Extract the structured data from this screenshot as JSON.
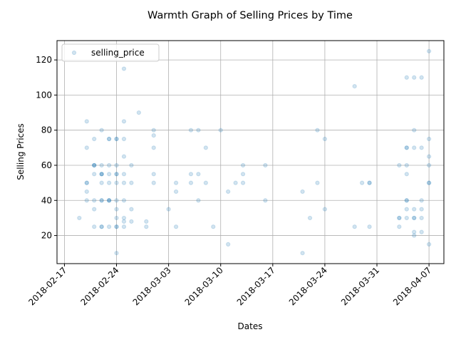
{
  "chart_data": {
    "type": "scatter",
    "title": "Warmth Graph of Selling Prices by Time",
    "xlabel": "Dates",
    "ylabel": "Selling Prices",
    "xlim": [
      "2018-02-16",
      "2018-04-09"
    ],
    "ylim": [
      4,
      131
    ],
    "xticks": [
      "2018-02-17",
      "2018-02-24",
      "2018-03-03",
      "2018-03-10",
      "2018-03-17",
      "2018-03-24",
      "2018-03-31",
      "2018-04-07"
    ],
    "yticks": [
      20,
      40,
      60,
      80,
      100,
      120
    ],
    "grid": true,
    "legend_position": "top-left",
    "series": [
      {
        "name": "selling_price",
        "color": "#1f77b4",
        "points": [
          [
            "2018-02-19",
            30
          ],
          [
            "2018-02-20",
            85
          ],
          [
            "2018-02-20",
            70
          ],
          [
            "2018-02-20",
            50
          ],
          [
            "2018-02-20",
            50
          ],
          [
            "2018-02-20",
            45
          ],
          [
            "2018-02-20",
            40
          ],
          [
            "2018-02-21",
            75
          ],
          [
            "2018-02-21",
            60
          ],
          [
            "2018-02-21",
            60
          ],
          [
            "2018-02-21",
            60
          ],
          [
            "2018-02-21",
            55
          ],
          [
            "2018-02-21",
            40
          ],
          [
            "2018-02-21",
            35
          ],
          [
            "2018-02-21",
            25
          ],
          [
            "2018-02-22",
            80
          ],
          [
            "2018-02-22",
            60
          ],
          [
            "2018-02-22",
            55
          ],
          [
            "2018-02-22",
            55
          ],
          [
            "2018-02-22",
            55
          ],
          [
            "2018-02-22",
            50
          ],
          [
            "2018-02-22",
            40
          ],
          [
            "2018-02-22",
            40
          ],
          [
            "2018-02-22",
            25
          ],
          [
            "2018-02-22",
            25
          ],
          [
            "2018-02-23",
            75
          ],
          [
            "2018-02-23",
            75
          ],
          [
            "2018-02-23",
            60
          ],
          [
            "2018-02-23",
            55
          ],
          [
            "2018-02-23",
            50
          ],
          [
            "2018-02-23",
            40
          ],
          [
            "2018-02-23",
            40
          ],
          [
            "2018-02-23",
            40
          ],
          [
            "2018-02-23",
            25
          ],
          [
            "2018-02-24",
            75
          ],
          [
            "2018-02-24",
            75
          ],
          [
            "2018-02-24",
            60
          ],
          [
            "2018-02-24",
            55
          ],
          [
            "2018-02-24",
            55
          ],
          [
            "2018-02-24",
            50
          ],
          [
            "2018-02-24",
            40
          ],
          [
            "2018-02-24",
            35
          ],
          [
            "2018-02-24",
            30
          ],
          [
            "2018-02-24",
            25
          ],
          [
            "2018-02-24",
            25
          ],
          [
            "2018-02-24",
            10
          ],
          [
            "2018-02-25",
            115
          ],
          [
            "2018-02-25",
            85
          ],
          [
            "2018-02-25",
            75
          ],
          [
            "2018-02-25",
            65
          ],
          [
            "2018-02-25",
            55
          ],
          [
            "2018-02-25",
            50
          ],
          [
            "2018-02-25",
            40
          ],
          [
            "2018-02-25",
            30
          ],
          [
            "2018-02-25",
            28
          ],
          [
            "2018-02-25",
            25
          ],
          [
            "2018-02-26",
            60
          ],
          [
            "2018-02-26",
            50
          ],
          [
            "2018-02-26",
            35
          ],
          [
            "2018-02-26",
            28
          ],
          [
            "2018-02-27",
            90
          ],
          [
            "2018-02-28",
            28
          ],
          [
            "2018-02-28",
            25
          ],
          [
            "2018-03-01",
            80
          ],
          [
            "2018-03-01",
            77
          ],
          [
            "2018-03-01",
            70
          ],
          [
            "2018-03-01",
            55
          ],
          [
            "2018-03-01",
            50
          ],
          [
            "2018-03-03",
            35
          ],
          [
            "2018-03-04",
            50
          ],
          [
            "2018-03-04",
            45
          ],
          [
            "2018-03-04",
            25
          ],
          [
            "2018-03-06",
            80
          ],
          [
            "2018-03-06",
            55
          ],
          [
            "2018-03-06",
            50
          ],
          [
            "2018-03-07",
            80
          ],
          [
            "2018-03-07",
            55
          ],
          [
            "2018-03-07",
            40
          ],
          [
            "2018-03-08",
            70
          ],
          [
            "2018-03-08",
            50
          ],
          [
            "2018-03-09",
            25
          ],
          [
            "2018-03-10",
            80
          ],
          [
            "2018-03-11",
            45
          ],
          [
            "2018-03-11",
            15
          ],
          [
            "2018-03-12",
            50
          ],
          [
            "2018-03-13",
            60
          ],
          [
            "2018-03-13",
            55
          ],
          [
            "2018-03-13",
            50
          ],
          [
            "2018-03-16",
            60
          ],
          [
            "2018-03-16",
            40
          ],
          [
            "2018-03-21",
            45
          ],
          [
            "2018-03-21",
            10
          ],
          [
            "2018-03-22",
            30
          ],
          [
            "2018-03-23",
            80
          ],
          [
            "2018-03-23",
            50
          ],
          [
            "2018-03-24",
            75
          ],
          [
            "2018-03-24",
            35
          ],
          [
            "2018-03-28",
            105
          ],
          [
            "2018-03-28",
            25
          ],
          [
            "2018-03-29",
            50
          ],
          [
            "2018-03-30",
            50
          ],
          [
            "2018-03-30",
            50
          ],
          [
            "2018-03-30",
            25
          ],
          [
            "2018-04-03",
            60
          ],
          [
            "2018-04-03",
            30
          ],
          [
            "2018-04-03",
            30
          ],
          [
            "2018-04-03",
            25
          ],
          [
            "2018-04-04",
            110
          ],
          [
            "2018-04-04",
            70
          ],
          [
            "2018-04-04",
            70
          ],
          [
            "2018-04-04",
            60
          ],
          [
            "2018-04-04",
            55
          ],
          [
            "2018-04-04",
            40
          ],
          [
            "2018-04-04",
            40
          ],
          [
            "2018-04-04",
            35
          ],
          [
            "2018-04-04",
            30
          ],
          [
            "2018-04-05",
            110
          ],
          [
            "2018-04-05",
            80
          ],
          [
            "2018-04-05",
            70
          ],
          [
            "2018-04-05",
            35
          ],
          [
            "2018-04-05",
            30
          ],
          [
            "2018-04-05",
            30
          ],
          [
            "2018-04-05",
            22
          ],
          [
            "2018-04-05",
            20
          ],
          [
            "2018-04-06",
            110
          ],
          [
            "2018-04-06",
            70
          ],
          [
            "2018-04-06",
            40
          ],
          [
            "2018-04-06",
            35
          ],
          [
            "2018-04-06",
            30
          ],
          [
            "2018-04-06",
            22
          ],
          [
            "2018-04-07",
            125
          ],
          [
            "2018-04-07",
            75
          ],
          [
            "2018-04-07",
            65
          ],
          [
            "2018-04-07",
            60
          ],
          [
            "2018-04-07",
            50
          ],
          [
            "2018-04-07",
            50
          ],
          [
            "2018-04-07",
            15
          ]
        ]
      }
    ]
  }
}
